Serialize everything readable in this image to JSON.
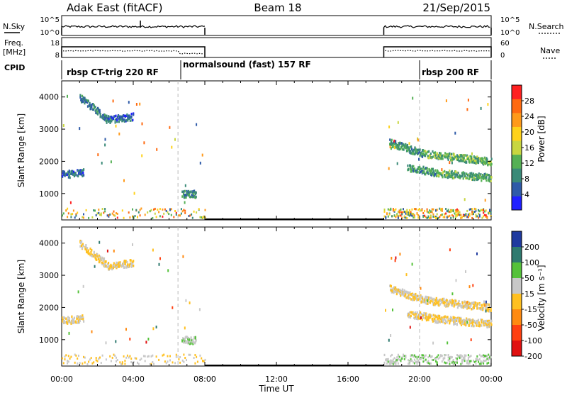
{
  "header": {
    "radar": "Adak East (fitACF)",
    "beam": "Beam 18",
    "date": "21/Sep/2015"
  },
  "top_panels": {
    "nsky": {
      "label": "N.Sky",
      "ticks_left": [
        "10^5",
        "10^0"
      ],
      "ticks_right": [
        "10^5",
        "10^0"
      ],
      "right_label": "N.Search"
    },
    "freq": {
      "label_line1": "Freq.",
      "label_line2": "[MHz]",
      "ticks_left": [
        "18",
        "8"
      ],
      "ticks_right": [
        "60",
        "0"
      ],
      "right_label": "Nave"
    },
    "cpid": {
      "label": "CPID",
      "segments": [
        {
          "label": "rbsp CT-trig 220 RF",
          "start_hour": 0.0
        },
        {
          "label": "normalsound (fast) 157 RF",
          "start_hour": 6.5
        },
        {
          "label": "rbsp 200 RF",
          "start_hour": 20.0
        }
      ]
    }
  },
  "x_axis": {
    "label": "Time UT",
    "tick_labels": [
      "00:00",
      "04:00",
      "08:00",
      "12:00",
      "16:00",
      "20:00",
      "00:00"
    ],
    "range_hours": [
      0,
      24
    ]
  },
  "chart_data": [
    {
      "type": "heatmap",
      "title": "",
      "xlabel": "Time UT",
      "ylabel": "Slant Range [km]",
      "ylim": [
        180,
        4500
      ],
      "yticks": [
        "1000",
        "2000",
        "3000",
        "4000"
      ],
      "colorbar": {
        "label": "Power [dB]",
        "range": [
          0,
          32
        ],
        "ticks": [
          "4",
          "8",
          "12",
          "16",
          "20",
          "24",
          "28"
        ],
        "colors": [
          "#1f1fff",
          "#2e5aa8",
          "#3a8a78",
          "#55b055",
          "#c8d640",
          "#ffd21a",
          "#ff9a1a",
          "#ff6a10",
          "#ff2020"
        ]
      },
      "data_windows_hours": [
        [
          0,
          8
        ],
        [
          18,
          24
        ]
      ],
      "bands": [
        {
          "t": [
            1.0,
            2.6
          ],
          "r": [
            3950,
            3250
          ],
          "value": 8
        },
        {
          "t": [
            2.6,
            4.0
          ],
          "r": [
            3250,
            3350
          ],
          "value": 6
        },
        {
          "t": [
            0.0,
            1.2
          ],
          "r": [
            1550,
            1620
          ],
          "value": 6
        },
        {
          "t": [
            18.3,
            20.2
          ],
          "r": [
            2550,
            2200
          ],
          "value": 10
        },
        {
          "t": [
            20.2,
            24.0
          ],
          "r": [
            2200,
            1950
          ],
          "value": 12
        },
        {
          "t": [
            19.3,
            21.0
          ],
          "r": [
            1780,
            1600
          ],
          "value": 10
        },
        {
          "t": [
            21.0,
            24.0
          ],
          "r": [
            1600,
            1450
          ],
          "value": 11
        },
        {
          "t": [
            6.7,
            7.5
          ],
          "r": [
            950,
            950
          ],
          "value": 9
        }
      ],
      "ground_scatter": {
        "range_km": [
          200,
          500
        ],
        "windows_hours": [
          [
            0,
            8
          ],
          [
            18,
            24
          ]
        ]
      }
    },
    {
      "type": "heatmap",
      "title": "",
      "xlabel": "Time UT",
      "ylabel": "Slant Range [km]",
      "ylim": [
        180,
        4500
      ],
      "yticks": [
        "1000",
        "2000",
        "3000",
        "4000"
      ],
      "colorbar": {
        "label": "Velocity [m s⁻¹]",
        "range": [
          -250,
          250
        ],
        "ticks": [
          "200",
          "100",
          "50",
          "15",
          "-15",
          "-50",
          "-100",
          "-200"
        ],
        "colors": [
          "#1f3a9f",
          "#2f7a6f",
          "#55c23a",
          "#c8c8c8",
          "#ffc020",
          "#ff8a10",
          "#ff4010",
          "#e01010"
        ]
      },
      "data_windows_hours": [
        [
          0,
          8
        ],
        [
          18,
          24
        ]
      ],
      "bands": [
        {
          "t": [
            1.0,
            2.6
          ],
          "r": [
            3950,
            3250
          ],
          "value": 0
        },
        {
          "t": [
            2.6,
            4.0
          ],
          "r": [
            3250,
            3350
          ],
          "value": 0
        },
        {
          "t": [
            0.0,
            1.2
          ],
          "r": [
            1550,
            1620
          ],
          "value": 0
        },
        {
          "t": [
            18.3,
            20.2
          ],
          "r": [
            2550,
            2200
          ],
          "value": 0
        },
        {
          "t": [
            20.2,
            24.0
          ],
          "r": [
            2200,
            1950
          ],
          "value": 0
        },
        {
          "t": [
            19.3,
            21.0
          ],
          "r": [
            1780,
            1600
          ],
          "value": 0
        },
        {
          "t": [
            21.0,
            24.0
          ],
          "r": [
            1600,
            1450
          ],
          "value": 0
        },
        {
          "t": [
            6.7,
            7.5
          ],
          "r": [
            950,
            950
          ],
          "value": 60
        }
      ],
      "ground_scatter": {
        "range_km": [
          200,
          500
        ],
        "windows_hours": [
          [
            0,
            8
          ],
          [
            18,
            24
          ]
        ]
      }
    }
  ]
}
